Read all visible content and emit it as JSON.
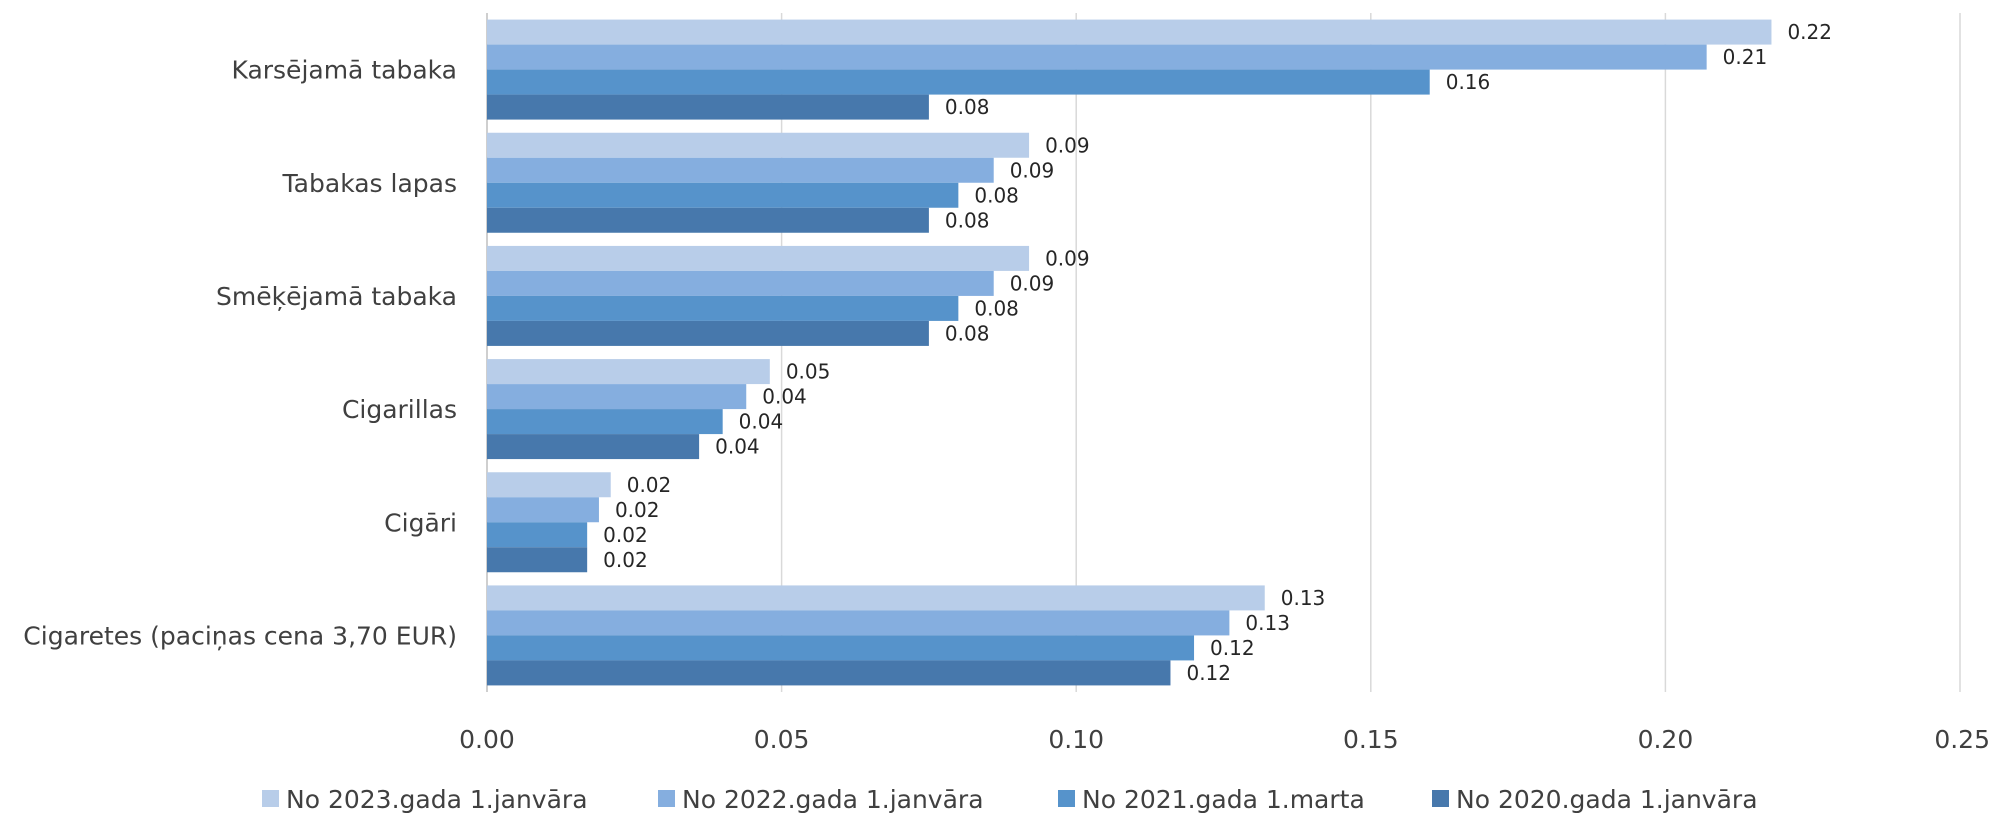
{
  "chart_data": {
    "type": "bar",
    "orientation": "horizontal",
    "categories": [
      "Karsējamā tabaka",
      "Tabakas lapas",
      "Smēķējamā tabaka",
      "Cigarillas",
      "Cigāri",
      "Cigaretes (paciņas cena 3,70 EUR)"
    ],
    "series": [
      {
        "name": "No 2023.gada 1.janvāra",
        "color": "#B8CDE9",
        "values": [
          0.218,
          0.092,
          0.092,
          0.048,
          0.021,
          0.132
        ],
        "labels": [
          "0.22",
          "0.09",
          "0.09",
          "0.05",
          "0.02",
          "0.13"
        ]
      },
      {
        "name": "No 2022.gada 1.janvāra",
        "color": "#85AEDF",
        "values": [
          0.207,
          0.086,
          0.086,
          0.044,
          0.019,
          0.126
        ],
        "labels": [
          "0.21",
          "0.09",
          "0.09",
          "0.04",
          "0.02",
          "0.13"
        ]
      },
      {
        "name": "No 2021.gada 1.marta",
        "color": "#5693CB",
        "values": [
          0.16,
          0.08,
          0.08,
          0.04,
          0.017,
          0.12
        ],
        "labels": [
          "0.16",
          "0.08",
          "0.08",
          "0.04",
          "0.02",
          "0.12"
        ]
      },
      {
        "name": "No 2020.gada 1.janvāra",
        "color": "#4778AC",
        "values": [
          0.075,
          0.075,
          0.075,
          0.036,
          0.017,
          0.116
        ],
        "labels": [
          "0.08",
          "0.08",
          "0.08",
          "0.04",
          "0.02",
          "0.12"
        ]
      }
    ],
    "xlim": [
      0,
      0.25
    ],
    "xticks": [
      "0.00",
      "0.05",
      "0.10",
      "0.15",
      "0.20",
      "0.25"
    ],
    "grid": "vertical",
    "legend": "bottom"
  }
}
